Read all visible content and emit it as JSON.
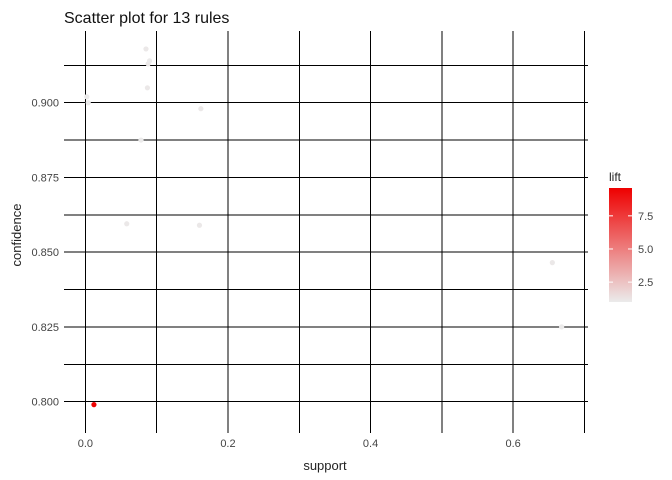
{
  "chart_data": {
    "type": "scatter",
    "title": "Scatter plot for 13 rules",
    "xlabel": "support",
    "ylabel": "confidence",
    "xlim": [
      -0.03,
      0.705
    ],
    "ylim": [
      0.7895,
      0.924
    ],
    "x_major_ticks": [
      0.0,
      0.2,
      0.4,
      0.6
    ],
    "x_minor_ticks": [
      0.1,
      0.3,
      0.5,
      0.7
    ],
    "y_major_ticks": [
      0.8,
      0.825,
      0.85,
      0.875,
      0.9
    ],
    "y_minor_ticks": [
      0.8125,
      0.8375,
      0.8625,
      0.8875,
      0.9125
    ],
    "x_tick_labels": [
      "0.0",
      "0.2",
      "0.4",
      "0.6"
    ],
    "y_tick_labels": [
      "0.800",
      "0.825",
      "0.850",
      "0.875",
      "0.900"
    ],
    "legend": {
      "title": "lift",
      "position": "right",
      "min": 1.0,
      "max": 9.6,
      "ticks": [
        2.5,
        5.0,
        7.5
      ],
      "tick_labels": [
        "2.5",
        "5.0",
        "7.5"
      ],
      "color_low": "#ebebeb",
      "color_high": "#ee0000"
    },
    "points": [
      {
        "support": 0.012,
        "confidence": 0.799,
        "lift": 9.5
      },
      {
        "support": 0.002,
        "confidence": 0.902,
        "lift": 1.05
      },
      {
        "support": 0.004,
        "confidence": 0.9,
        "lift": 1.05
      },
      {
        "support": 0.085,
        "confidence": 0.918,
        "lift": 1.1
      },
      {
        "support": 0.088,
        "confidence": 0.913,
        "lift": 1.1
      },
      {
        "support": 0.087,
        "confidence": 0.905,
        "lift": 1.1
      },
      {
        "support": 0.162,
        "confidence": 0.898,
        "lift": 1.1
      },
      {
        "support": 0.078,
        "confidence": 0.8875,
        "lift": 1.05
      },
      {
        "support": 0.058,
        "confidence": 0.8595,
        "lift": 1.1
      },
      {
        "support": 0.16,
        "confidence": 0.859,
        "lift": 1.1
      },
      {
        "support": 0.655,
        "confidence": 0.8465,
        "lift": 1.1
      },
      {
        "support": 0.668,
        "confidence": 0.825,
        "lift": 1.05
      },
      {
        "support": 0.09,
        "confidence": 0.914,
        "lift": 1.05
      }
    ]
  }
}
